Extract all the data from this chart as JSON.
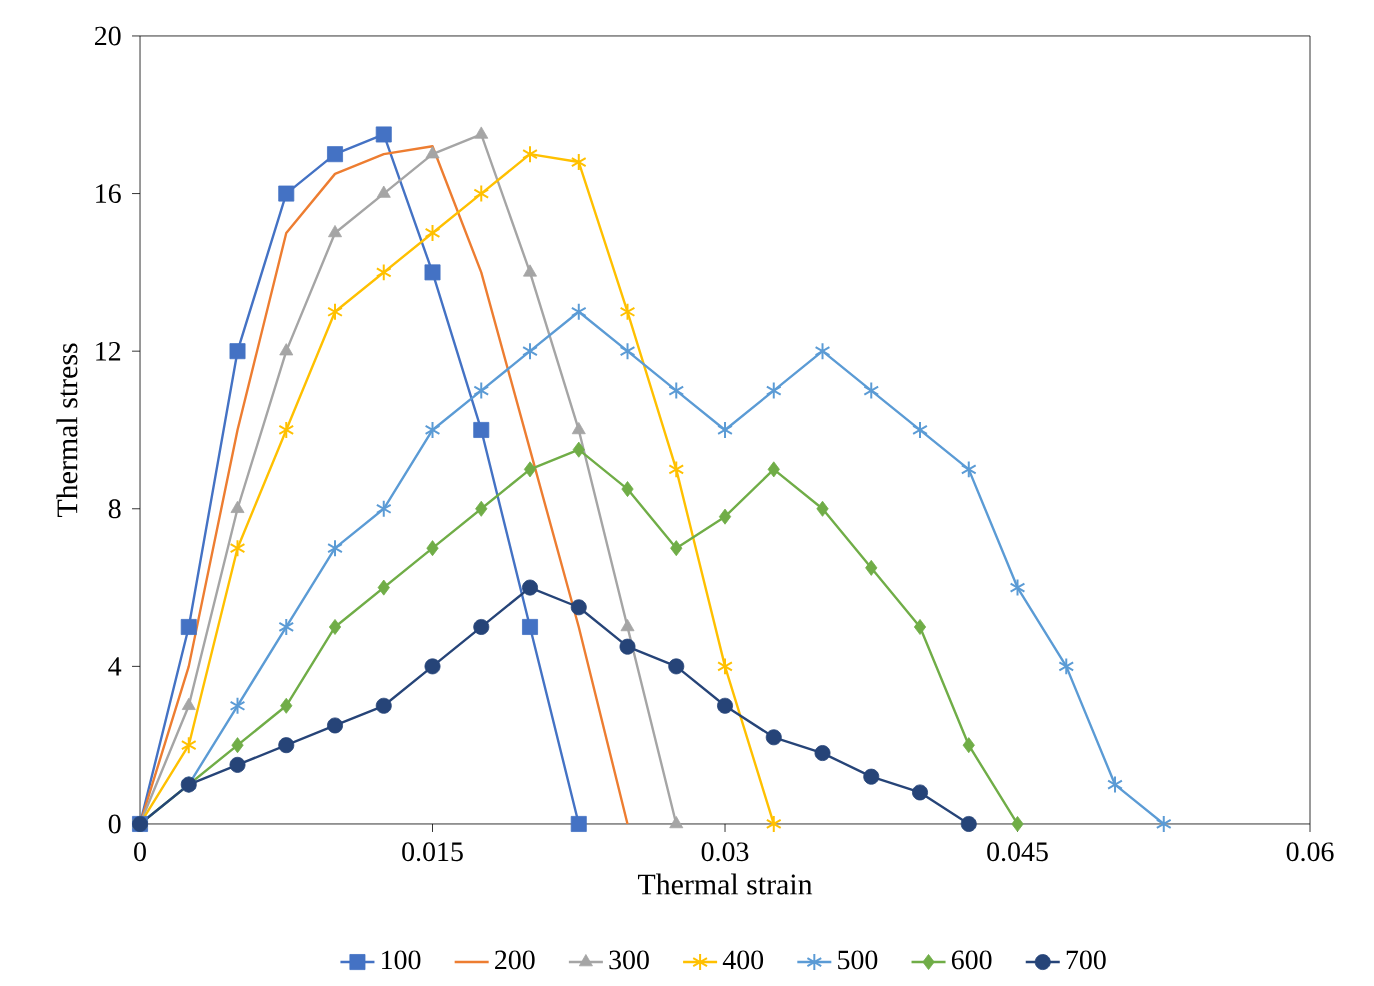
{
  "chart_data": {
    "type": "line",
    "xlabel": "Thermal strain",
    "ylabel": "Thermal stress",
    "xlim": [
      0,
      0.06
    ],
    "ylim": [
      0,
      20
    ],
    "xticks": [
      0,
      0.015,
      0.03,
      0.045,
      0.06
    ],
    "yticks": [
      0,
      4,
      8,
      12,
      16,
      20
    ],
    "grid": false,
    "legend": "bottom",
    "series": [
      {
        "name": "100",
        "color": "#4472c4",
        "marker": "square",
        "x": [
          0,
          0.0025,
          0.005,
          0.0075,
          0.01,
          0.0125,
          0.015,
          0.0175,
          0.02,
          0.0225
        ],
        "values": [
          0,
          5,
          12,
          16,
          17,
          17.5,
          14,
          10,
          5,
          0
        ]
      },
      {
        "name": "200",
        "color": "#ed7d31",
        "marker": "none",
        "x": [
          0,
          0.0025,
          0.005,
          0.0075,
          0.01,
          0.0125,
          0.015,
          0.0175,
          0.02,
          0.0225,
          0.025
        ],
        "values": [
          0,
          4,
          10,
          15,
          16.5,
          17,
          17.2,
          14,
          9.5,
          5,
          0
        ]
      },
      {
        "name": "300",
        "color": "#a5a5a5",
        "marker": "triangle",
        "x": [
          0,
          0.0025,
          0.005,
          0.0075,
          0.01,
          0.0125,
          0.015,
          0.0175,
          0.02,
          0.0225,
          0.025,
          0.0275
        ],
        "values": [
          0,
          3,
          8,
          12,
          15,
          16,
          17,
          17.5,
          14,
          10,
          5,
          0
        ]
      },
      {
        "name": "400",
        "color": "#ffc000",
        "marker": "cross",
        "x": [
          0,
          0.0025,
          0.005,
          0.0075,
          0.01,
          0.0125,
          0.015,
          0.0175,
          0.02,
          0.0225,
          0.025,
          0.0275,
          0.03,
          0.0325
        ],
        "values": [
          0,
          2,
          7,
          10,
          13,
          14,
          15,
          16,
          17,
          16.8,
          13,
          9,
          4,
          0
        ]
      },
      {
        "name": "500",
        "color": "#5b9bd5",
        "marker": "cross",
        "x": [
          0,
          0.0025,
          0.005,
          0.0075,
          0.01,
          0.0125,
          0.015,
          0.0175,
          0.02,
          0.0225,
          0.025,
          0.0275,
          0.03,
          0.0325,
          0.035,
          0.0375,
          0.04,
          0.0425,
          0.045,
          0.0475,
          0.05,
          0.0525
        ],
        "values": [
          0,
          1,
          3,
          5,
          7,
          8,
          10,
          11,
          12,
          13,
          12,
          11,
          10,
          11,
          12,
          11,
          10,
          9,
          6,
          4,
          1,
          0
        ]
      },
      {
        "name": "600",
        "color": "#70ad47",
        "marker": "diamond",
        "x": [
          0,
          0.0025,
          0.005,
          0.0075,
          0.01,
          0.0125,
          0.015,
          0.0175,
          0.02,
          0.0225,
          0.025,
          0.0275,
          0.03,
          0.0325,
          0.035,
          0.0375,
          0.04,
          0.0425,
          0.045
        ],
        "values": [
          0,
          1,
          2,
          3,
          5,
          6,
          7,
          8,
          9,
          9.5,
          8.5,
          7,
          7.8,
          9,
          8,
          6.5,
          5,
          2,
          0
        ]
      },
      {
        "name": "700",
        "color": "#264478",
        "marker": "circle",
        "x": [
          0,
          0.0025,
          0.005,
          0.0075,
          0.01,
          0.0125,
          0.015,
          0.0175,
          0.02,
          0.0225,
          0.025,
          0.0275,
          0.03,
          0.0325,
          0.035,
          0.0375,
          0.04,
          0.0425
        ],
        "values": [
          0,
          1,
          1.5,
          2,
          2.5,
          3,
          4,
          5,
          6,
          5.5,
          4.5,
          4,
          3,
          2.2,
          1.8,
          1.2,
          0.8,
          0
        ]
      }
    ]
  }
}
